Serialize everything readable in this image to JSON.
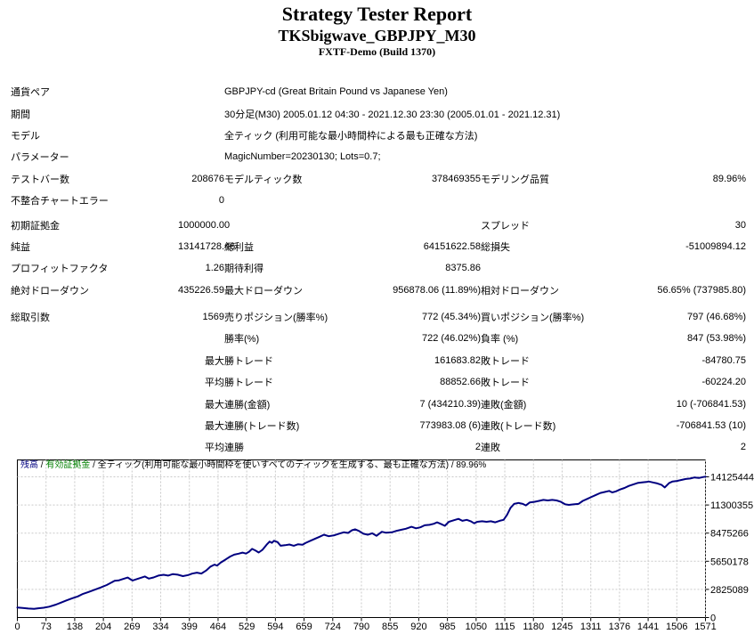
{
  "report": {
    "title": "Strategy Tester Report",
    "subtitle": "TKSbigwave_GBPJPY_M30",
    "server": "FXTF-Demo (Build 1370)"
  },
  "table": {
    "rows": [
      {
        "type": "span",
        "label": "通貨ペア",
        "value": "GBPJPY-cd (Great Britain Pound vs Japanese Yen)"
      },
      {
        "type": "span",
        "label": "期間",
        "value": "30分足(M30) 2005.01.12 04:30 - 2021.12.30 23:30 (2005.01.01 - 2021.12.31)"
      },
      {
        "type": "span",
        "label": "モデル",
        "value": "全ティック (利用可能な最小時間枠による最も正確な方法)"
      },
      {
        "type": "span",
        "label": "パラメーター",
        "value": "MagicNumber=20230130; Lots=0.7;"
      },
      {
        "type": "six",
        "c": [
          "テストバー数",
          "208676",
          "モデルティック数",
          "378469355",
          "モデリング品質",
          "89.96%"
        ]
      },
      {
        "type": "six",
        "c": [
          "不整合チャートエラー",
          "0",
          "",
          "",
          "",
          ""
        ]
      },
      {
        "type": "gap",
        "h": 3
      },
      {
        "type": "six",
        "c": [
          "初期証拠金",
          "1000000.00",
          "",
          "",
          "スプレッド",
          "30"
        ]
      },
      {
        "type": "six",
        "c": [
          "純益",
          "13141728.46",
          "総利益",
          "64151622.58",
          "総損失",
          "-51009894.12"
        ]
      },
      {
        "type": "six",
        "c": [
          "プロフィットファクタ",
          "1.26",
          "期待利得",
          "8375.86",
          "",
          ""
        ]
      },
      {
        "type": "six",
        "c": [
          "絶対ドローダウン",
          "435226.59",
          "最大ドローダウン",
          "956878.06 (11.89%)",
          "相対ドローダウン",
          "56.65% (737985.80)"
        ]
      },
      {
        "type": "gap",
        "h": 6
      },
      {
        "type": "six",
        "c": [
          "総取引数",
          "1569",
          "売りポジション(勝率%)",
          "772 (45.34%)",
          "買いポジション(勝率%)",
          "797 (46.68%)"
        ]
      },
      {
        "type": "six",
        "c": [
          "",
          "",
          "勝率(%)",
          "722 (46.02%)",
          "負率 (%)",
          "847 (53.98%)"
        ]
      },
      {
        "type": "six",
        "c": [
          "",
          "最大",
          "勝トレード",
          "161683.82",
          "敗トレード",
          "-84780.75"
        ]
      },
      {
        "type": "six",
        "c": [
          "",
          "平均",
          "勝トレード",
          "88852.66",
          "敗トレード",
          "-60224.20"
        ]
      },
      {
        "type": "six",
        "c": [
          "",
          "最大",
          "連勝(金額)",
          "7 (434210.39)",
          "連敗(金額)",
          "10 (-706841.53)"
        ]
      },
      {
        "type": "six",
        "c": [
          "",
          "最大",
          "連勝(トレード数)",
          "773983.08 (6)",
          "連敗(トレード数)",
          "-706841.53 (10)"
        ]
      },
      {
        "type": "six",
        "c": [
          "",
          "平均",
          "連勝",
          "2",
          "連敗",
          "2"
        ]
      }
    ]
  },
  "chart_data": {
    "type": "line",
    "header_segments": [
      {
        "text": "残高",
        "color": "#000080"
      },
      {
        "text": " / ",
        "color": "#000000"
      },
      {
        "text": "有効証拠金",
        "color": "#008000"
      },
      {
        "text": " / 全ティック(利用可能な最小時間枠を使いすべてのティックを生成する、最も正確な方法) / 89.96%",
        "color": "#000000"
      }
    ],
    "x_ticks": [
      0,
      73,
      138,
      204,
      269,
      334,
      399,
      464,
      529,
      594,
      659,
      724,
      790,
      855,
      920,
      985,
      1050,
      1115,
      1180,
      1245,
      1311,
      1376,
      1441,
      1506,
      1571
    ],
    "y_ticks": [
      0,
      2825089,
      5650178,
      8475266,
      11300355,
      14125444
    ],
    "xlim": [
      0,
      1571
    ],
    "ylim": [
      0,
      14125444
    ],
    "grid_color": "#c9c9c9",
    "axis_color": "#000000",
    "line_color": "#000080",
    "series": [
      {
        "name": "残高",
        "color": "#000080",
        "points": [
          [
            0,
            1000000
          ],
          [
            12,
            960000
          ],
          [
            25,
            900000
          ],
          [
            38,
            870000
          ],
          [
            48,
            930000
          ],
          [
            60,
            980000
          ],
          [
            73,
            1090000
          ],
          [
            88,
            1300000
          ],
          [
            100,
            1500000
          ],
          [
            112,
            1720000
          ],
          [
            125,
            1930000
          ],
          [
            138,
            2120000
          ],
          [
            150,
            2380000
          ],
          [
            162,
            2560000
          ],
          [
            175,
            2760000
          ],
          [
            190,
            3010000
          ],
          [
            204,
            3260000
          ],
          [
            214,
            3500000
          ],
          [
            222,
            3680000
          ],
          [
            232,
            3740000
          ],
          [
            243,
            3900000
          ],
          [
            252,
            4010000
          ],
          [
            258,
            3840000
          ],
          [
            263,
            3720000
          ],
          [
            269,
            3810000
          ],
          [
            280,
            3960000
          ],
          [
            291,
            4120000
          ],
          [
            300,
            3910000
          ],
          [
            311,
            4020000
          ],
          [
            322,
            4210000
          ],
          [
            334,
            4290000
          ],
          [
            344,
            4210000
          ],
          [
            355,
            4360000
          ],
          [
            366,
            4300000
          ],
          [
            378,
            4160000
          ],
          [
            390,
            4260000
          ],
          [
            399,
            4410000
          ],
          [
            410,
            4510000
          ],
          [
            420,
            4420000
          ],
          [
            431,
            4720000
          ],
          [
            441,
            5110000
          ],
          [
            450,
            5310000
          ],
          [
            456,
            5210000
          ],
          [
            464,
            5510000
          ],
          [
            475,
            5810000
          ],
          [
            486,
            6120000
          ],
          [
            495,
            6310000
          ],
          [
            505,
            6410000
          ],
          [
            514,
            6520000
          ],
          [
            522,
            6420000
          ],
          [
            529,
            6610000
          ],
          [
            536,
            6890000
          ],
          [
            544,
            6710000
          ],
          [
            551,
            6530000
          ],
          [
            560,
            6810000
          ],
          [
            569,
            7310000
          ],
          [
            576,
            7630000
          ],
          [
            581,
            7500000
          ],
          [
            586,
            7710000
          ],
          [
            594,
            7570000
          ],
          [
            601,
            7210000
          ],
          [
            611,
            7260000
          ],
          [
            621,
            7330000
          ],
          [
            631,
            7210000
          ],
          [
            641,
            7360000
          ],
          [
            651,
            7310000
          ],
          [
            659,
            7510000
          ],
          [
            669,
            7710000
          ],
          [
            680,
            7920000
          ],
          [
            690,
            8110000
          ],
          [
            700,
            8310000
          ],
          [
            711,
            8160000
          ],
          [
            724,
            8260000
          ],
          [
            734,
            8410000
          ],
          [
            745,
            8560000
          ],
          [
            755,
            8490000
          ],
          [
            764,
            8760000
          ],
          [
            771,
            8860000
          ],
          [
            780,
            8690000
          ],
          [
            790,
            8410000
          ],
          [
            800,
            8310000
          ],
          [
            810,
            8460000
          ],
          [
            820,
            8210000
          ],
          [
            832,
            8610000
          ],
          [
            842,
            8510000
          ],
          [
            855,
            8560000
          ],
          [
            866,
            8710000
          ],
          [
            876,
            8810000
          ],
          [
            887,
            8910000
          ],
          [
            900,
            9110000
          ],
          [
            910,
            8960000
          ],
          [
            920,
            9060000
          ],
          [
            930,
            9260000
          ],
          [
            941,
            9310000
          ],
          [
            951,
            9410000
          ],
          [
            958,
            9560000
          ],
          [
            966,
            9410000
          ],
          [
            976,
            9210000
          ],
          [
            985,
            9610000
          ],
          [
            996,
            9760000
          ],
          [
            1007,
            9910000
          ],
          [
            1016,
            9710000
          ],
          [
            1026,
            9810000
          ],
          [
            1035,
            9660000
          ],
          [
            1043,
            9460000
          ],
          [
            1050,
            9610000
          ],
          [
            1061,
            9660000
          ],
          [
            1071,
            9610000
          ],
          [
            1081,
            9660000
          ],
          [
            1091,
            9560000
          ],
          [
            1101,
            9710000
          ],
          [
            1110,
            9810000
          ],
          [
            1118,
            10310000
          ],
          [
            1126,
            11010000
          ],
          [
            1134,
            11410000
          ],
          [
            1144,
            11510000
          ],
          [
            1154,
            11410000
          ],
          [
            1161,
            11260000
          ],
          [
            1170,
            11560000
          ],
          [
            1180,
            11610000
          ],
          [
            1191,
            11710000
          ],
          [
            1201,
            11810000
          ],
          [
            1211,
            11760000
          ],
          [
            1221,
            11810000
          ],
          [
            1231,
            11760000
          ],
          [
            1241,
            11610000
          ],
          [
            1251,
            11360000
          ],
          [
            1259,
            11310000
          ],
          [
            1270,
            11360000
          ],
          [
            1281,
            11410000
          ],
          [
            1291,
            11710000
          ],
          [
            1301,
            11910000
          ],
          [
            1311,
            12110000
          ],
          [
            1321,
            12310000
          ],
          [
            1331,
            12510000
          ],
          [
            1341,
            12610000
          ],
          [
            1351,
            12710000
          ],
          [
            1358,
            12560000
          ],
          [
            1366,
            12660000
          ],
          [
            1376,
            12860000
          ],
          [
            1386,
            13010000
          ],
          [
            1396,
            13210000
          ],
          [
            1406,
            13360000
          ],
          [
            1416,
            13510000
          ],
          [
            1426,
            13560000
          ],
          [
            1436,
            13610000
          ],
          [
            1441,
            13660000
          ],
          [
            1451,
            13560000
          ],
          [
            1461,
            13460000
          ],
          [
            1471,
            13310000
          ],
          [
            1478,
            13060000
          ],
          [
            1488,
            13510000
          ],
          [
            1496,
            13660000
          ],
          [
            1506,
            13710000
          ],
          [
            1516,
            13810000
          ],
          [
            1526,
            13910000
          ],
          [
            1536,
            13960000
          ],
          [
            1546,
            14060000
          ],
          [
            1556,
            14010000
          ],
          [
            1566,
            14110000
          ],
          [
            1571,
            14141728
          ]
        ]
      }
    ]
  }
}
